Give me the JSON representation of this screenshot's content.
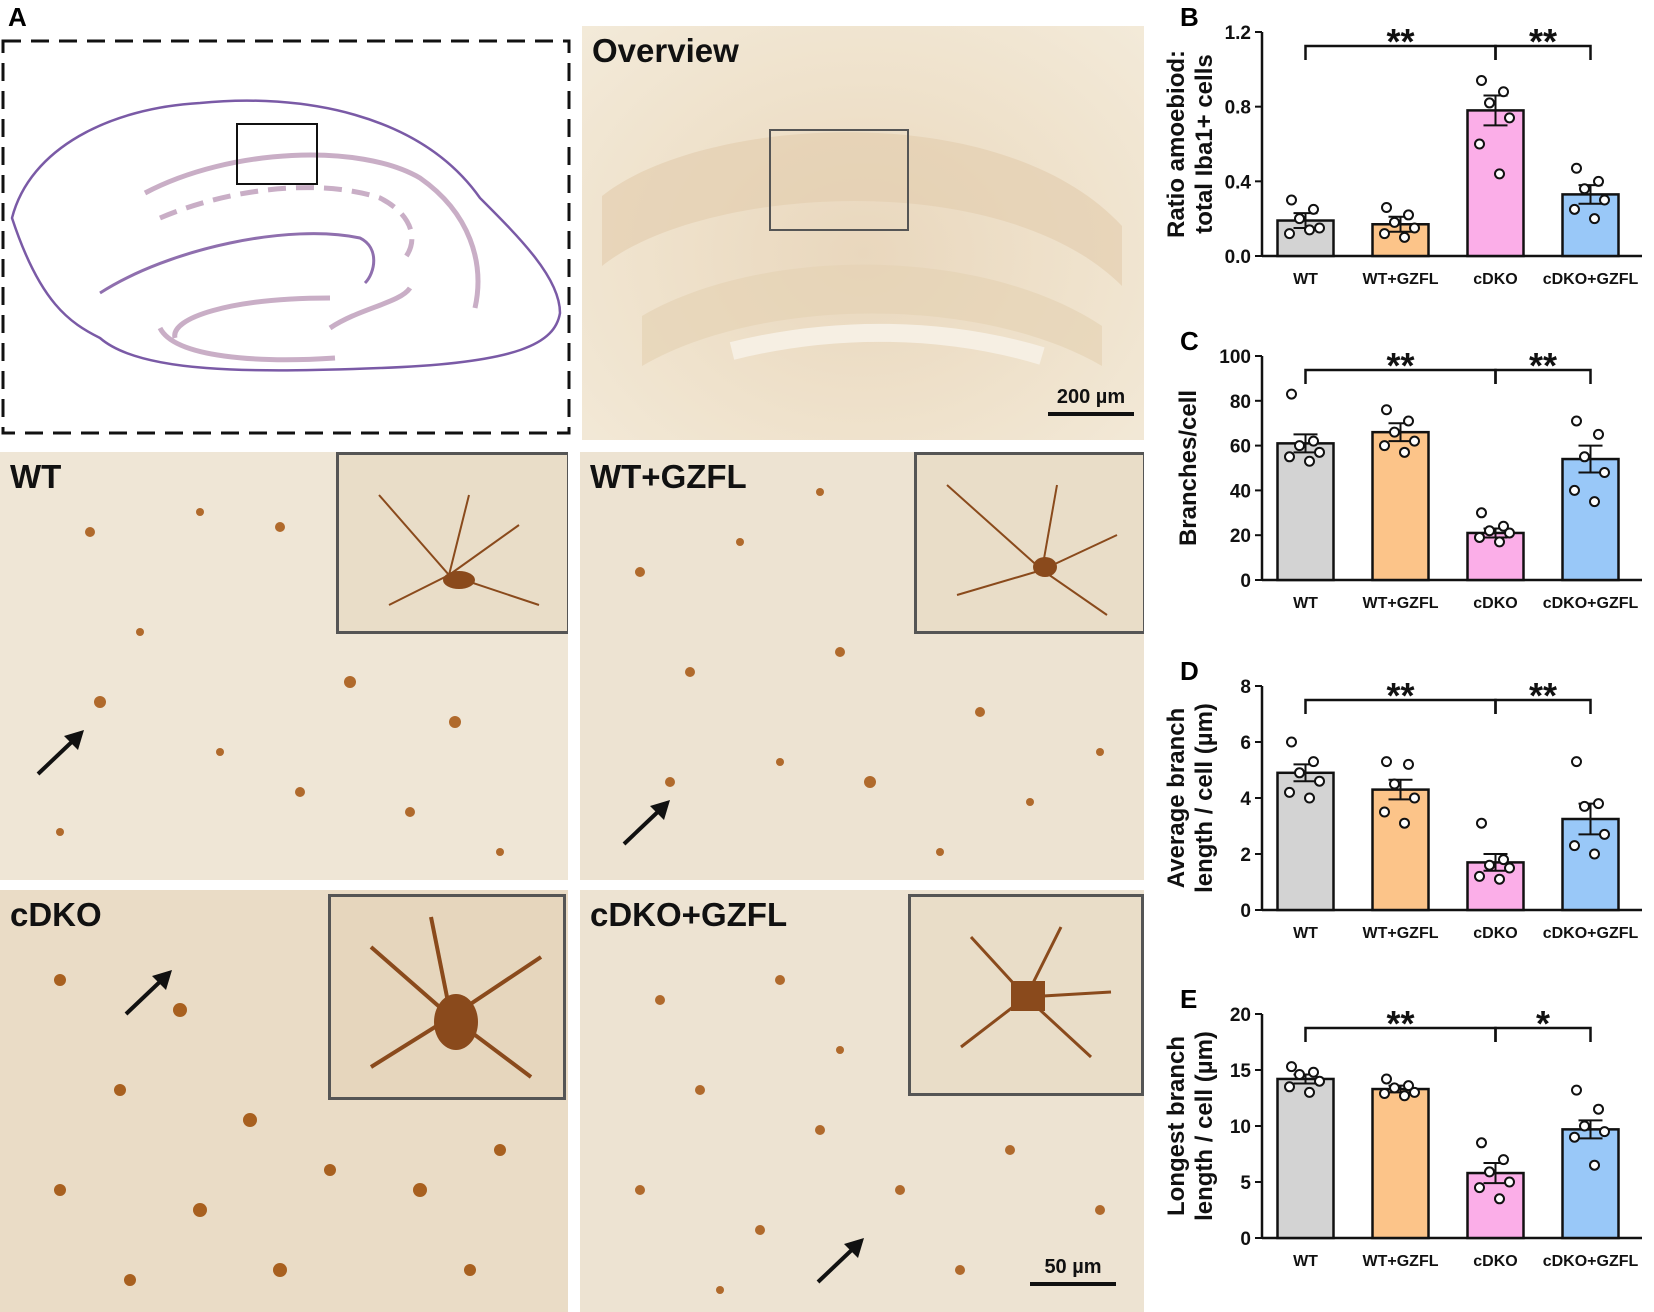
{
  "panels": {
    "A": "A",
    "B": "B",
    "C": "C",
    "D": "D",
    "E": "E"
  },
  "overview": {
    "label": "Overview",
    "scale": "200 µm"
  },
  "micrographs": [
    {
      "id": "wt",
      "label": "WT"
    },
    {
      "id": "wtgzfl",
      "label": "WT+GZFL"
    },
    {
      "id": "cdko",
      "label": "cDKO"
    },
    {
      "id": "cdkogzfl",
      "label": "cDKO+GZFL",
      "scale": "50 µm"
    }
  ],
  "colors": {
    "WT": "#d3d3d3",
    "WT+GZFL": "#fcc489",
    "cDKO": "#fbaee8",
    "cDKO+GZFL": "#99c8f8",
    "diagram_outer": "#7a5aa6",
    "diagram_inner": "#c9aec6"
  },
  "chart_data": [
    {
      "id": "B",
      "type": "bar",
      "categories": [
        "WT",
        "WT+GZFL",
        "cDKO",
        "cDKO+GZFL"
      ],
      "values": [
        0.19,
        0.17,
        0.78,
        0.33
      ],
      "errors": [
        0.04,
        0.04,
        0.08,
        0.05
      ],
      "points": [
        [
          0.3,
          0.25,
          0.2,
          0.15,
          0.12,
          0.14
        ],
        [
          0.26,
          0.22,
          0.18,
          0.15,
          0.12,
          0.1
        ],
        [
          0.94,
          0.88,
          0.82,
          0.74,
          0.6,
          0.44
        ],
        [
          0.47,
          0.4,
          0.36,
          0.3,
          0.25,
          0.2
        ]
      ],
      "ylabel": "Ratio amoebiod:\ntotal Iba1+ cells",
      "ylim": [
        0,
        1.2
      ],
      "yticks": [
        "0.0",
        "0.4",
        "0.8",
        "1.2"
      ],
      "significance": [
        "**",
        "**"
      ]
    },
    {
      "id": "C",
      "type": "bar",
      "categories": [
        "WT",
        "WT+GZFL",
        "cDKO",
        "cDKO+GZFL"
      ],
      "values": [
        61,
        66,
        21,
        54
      ],
      "errors": [
        4,
        4,
        2,
        6
      ],
      "points": [
        [
          83,
          62,
          60,
          57,
          55,
          53
        ],
        [
          76,
          71,
          66,
          62,
          60,
          57
        ],
        [
          30,
          24,
          22,
          21,
          19,
          17
        ],
        [
          71,
          65,
          55,
          48,
          40,
          35
        ]
      ],
      "ylabel": "Branches/cell",
      "ylim": [
        0,
        100
      ],
      "yticks": [
        "0",
        "20",
        "40",
        "60",
        "80",
        "100"
      ],
      "significance": [
        "**",
        "**"
      ]
    },
    {
      "id": "D",
      "type": "bar",
      "categories": [
        "WT",
        "WT+GZFL",
        "cDKO",
        "cDKO+GZFL"
      ],
      "values": [
        4.9,
        4.3,
        1.7,
        3.25
      ],
      "errors": [
        0.3,
        0.35,
        0.3,
        0.55
      ],
      "points": [
        [
          6.0,
          5.3,
          4.9,
          4.6,
          4.2,
          4.0
        ],
        [
          5.3,
          5.2,
          4.5,
          4.0,
          3.5,
          3.1
        ],
        [
          3.1,
          1.8,
          1.6,
          1.5,
          1.2,
          1.1
        ],
        [
          5.3,
          3.8,
          3.7,
          2.7,
          2.3,
          2.0
        ]
      ],
      "ylabel": "Average branch\nlength / cell (µm)",
      "ylim": [
        0,
        8
      ],
      "yticks": [
        "0",
        "2",
        "4",
        "6",
        "8"
      ],
      "significance": [
        "**",
        "**"
      ]
    },
    {
      "id": "E",
      "type": "bar",
      "categories": [
        "WT",
        "WT+GZFL",
        "cDKO",
        "cDKO+GZFL"
      ],
      "values": [
        14.2,
        13.3,
        5.8,
        9.7
      ],
      "errors": [
        0.4,
        0.3,
        0.9,
        0.8
      ],
      "points": [
        [
          15.3,
          14.8,
          14.6,
          14.0,
          13.5,
          13.0
        ],
        [
          14.2,
          13.6,
          13.4,
          13.0,
          12.9,
          12.7
        ],
        [
          8.5,
          7.0,
          5.9,
          5.0,
          4.5,
          3.5
        ],
        [
          13.2,
          11.5,
          10.0,
          9.5,
          9.0,
          6.5
        ]
      ],
      "ylabel": "Longest branch\nlength / cell (µm)",
      "ylim": [
        0,
        20
      ],
      "yticks": [
        "0",
        "5",
        "10",
        "15",
        "20"
      ],
      "significance": [
        "**",
        "*"
      ]
    }
  ]
}
